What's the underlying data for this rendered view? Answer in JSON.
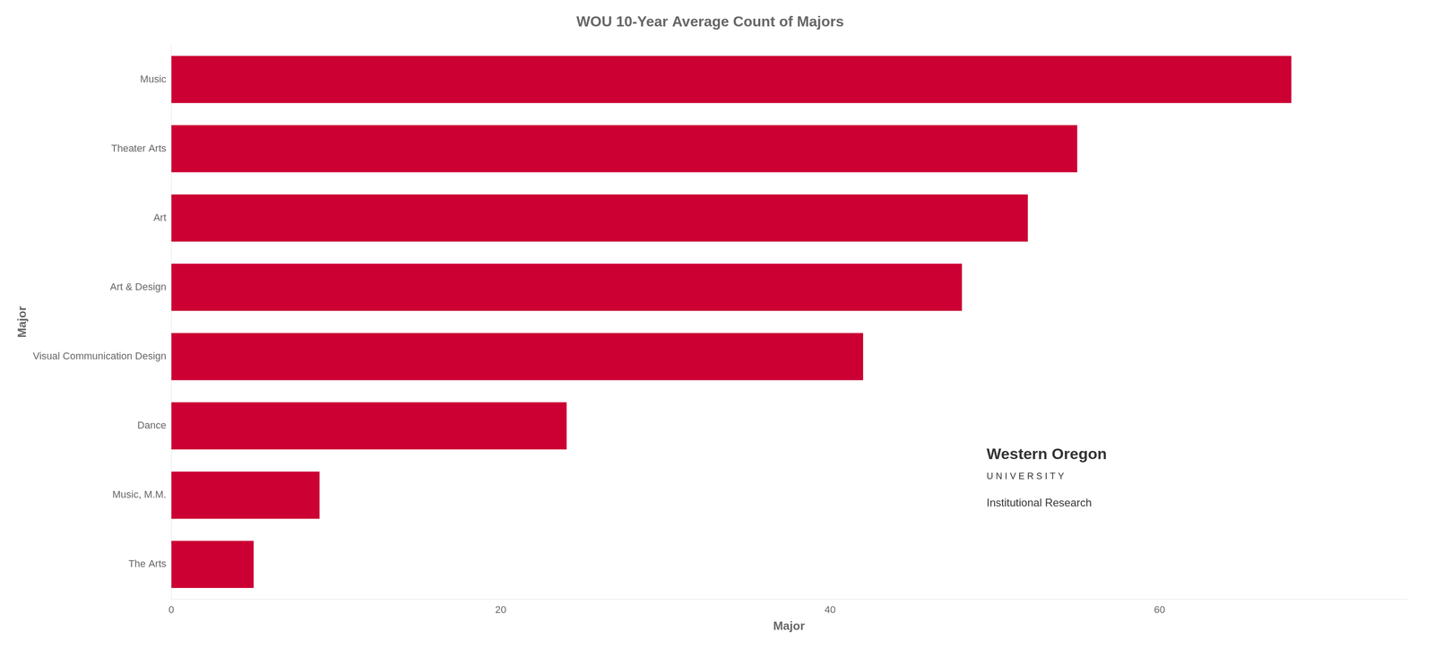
{
  "chart_data": {
    "type": "bar",
    "orientation": "horizontal",
    "title": "WOU 10-Year Average Count of Majors",
    "categories": [
      "Music",
      "Theater Arts",
      "Art",
      "Art & Design",
      "Visual Communication Design",
      "Dance",
      "Music, M.M.",
      "The Arts"
    ],
    "values": [
      68,
      55,
      52,
      48,
      42,
      24,
      9,
      5
    ],
    "color": "#CC0033",
    "xlabel": "Major",
    "ylabel": "Major",
    "xlim": [
      0,
      75
    ],
    "xticks": [
      0,
      20,
      40,
      60
    ],
    "grid": false,
    "legend": false,
    "annotations": [
      "Western Oregon",
      "U N I V E R S I T Y",
      "Institutional Research"
    ]
  }
}
